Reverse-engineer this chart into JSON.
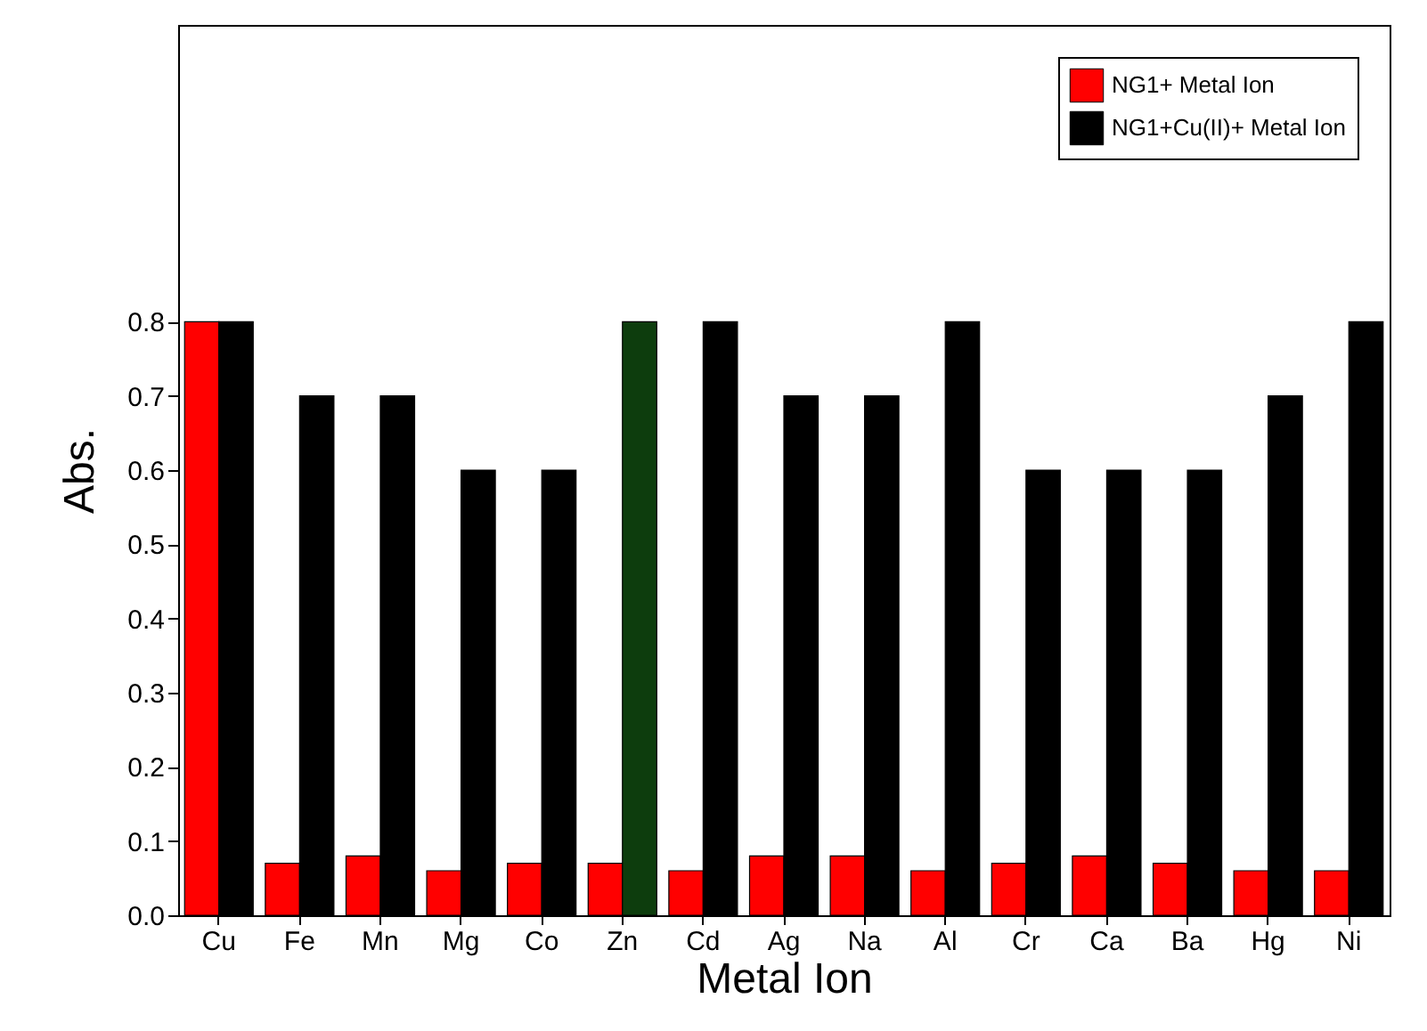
{
  "chart_data": {
    "type": "bar",
    "xlabel": "Metal Ion",
    "ylabel": "Abs.",
    "categories": [
      "Cu",
      "Fe",
      "Mn",
      "Mg",
      "Co",
      "Zn",
      "Cd",
      "Ag",
      "Na",
      "Al",
      "Cr",
      "Ca",
      "Ba",
      "Hg",
      "Ni"
    ],
    "series": [
      {
        "name": "NG1+ Metal Ion",
        "color": "#ff0000",
        "values": [
          0.8,
          0.07,
          0.08,
          0.06,
          0.07,
          0.07,
          0.06,
          0.08,
          0.08,
          0.06,
          0.07,
          0.08,
          0.07,
          0.06,
          0.06
        ]
      },
      {
        "name": "NG1+Cu(II)+ Metal Ion",
        "color": "#000000",
        "colors": [
          "#000000",
          "#000000",
          "#000000",
          "#000000",
          "#000000",
          "#0d3d0d",
          "#000000",
          "#000000",
          "#000000",
          "#000000",
          "#000000",
          "#000000",
          "#000000",
          "#000000",
          "#000000"
        ],
        "values": [
          0.8,
          0.7,
          0.7,
          0.6,
          0.6,
          0.8,
          0.8,
          0.7,
          0.7,
          0.8,
          0.6,
          0.6,
          0.6,
          0.7,
          0.8
        ]
      }
    ],
    "ylim": [
      0,
      1.2
    ],
    "yticks": [
      {
        "value": 0,
        "label": "0.0"
      },
      0.1,
      0.2,
      0.3,
      0.4,
      0.5,
      0.6,
      0.7,
      0.8
    ],
    "legend": "top right",
    "grid": false
  }
}
